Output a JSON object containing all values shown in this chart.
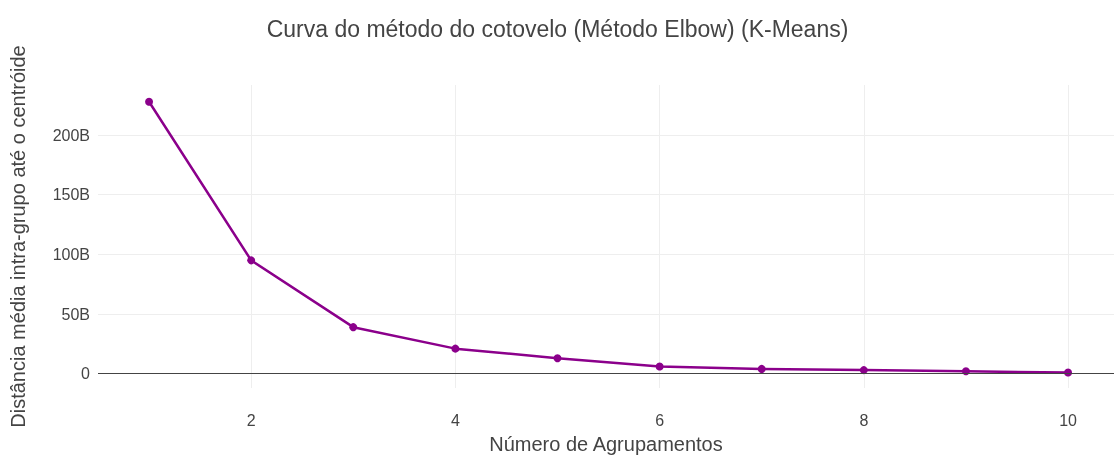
{
  "chart_data": {
    "type": "line",
    "title": "Curva do método do cotovelo (Método Elbow) (K-Means)",
    "xlabel": "Número de Agrupamentos",
    "ylabel": "Distância média intra-grupo até o centróide",
    "x": [
      1,
      2,
      3,
      4,
      5,
      6,
      7,
      8,
      9,
      10
    ],
    "series": [
      {
        "color": "#8b008b",
        "values": [
          228,
          95,
          39,
          21,
          13,
          6,
          4,
          3,
          2,
          1
        ]
      }
    ],
    "xlim": [
      0.5,
      10.45
    ],
    "xticks": [
      2,
      4,
      6,
      8,
      10
    ],
    "ylim": [
      -12,
      242
    ],
    "yticks": [
      0,
      {
        "value": 50,
        "label": "50B"
      },
      {
        "value": 100,
        "label": "100B"
      },
      {
        "value": 150,
        "label": "150B"
      },
      {
        "value": 200,
        "label": "200B"
      }
    ],
    "grid": true,
    "marker": "circle",
    "line_style": "solid"
  }
}
